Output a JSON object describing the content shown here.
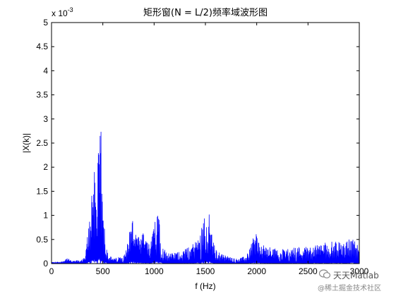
{
  "chart_data": {
    "type": "line",
    "title": "矩形窗(N = L/2)频率域波形图",
    "xlabel": "f (Hz)",
    "ylabel": "|X(k)|",
    "y_exponent_label": "x 10",
    "y_exponent_power": "-3",
    "xlim": [
      0,
      3000
    ],
    "ylim": [
      0,
      5
    ],
    "x_ticks": [
      "0",
      "500",
      "1000",
      "1500",
      "2000",
      "2500",
      "3000"
    ],
    "y_ticks": [
      "0",
      "0.5",
      "1",
      "1.5",
      "2",
      "2.5",
      "3",
      "3.5",
      "4",
      "4.5",
      "5"
    ],
    "grid": false,
    "series": [
      {
        "color": "#0000ff",
        "envelope": [
          [
            0,
            0.03
          ],
          [
            100,
            0.04
          ],
          [
            150,
            0.12
          ],
          [
            200,
            0.05
          ],
          [
            300,
            0.08
          ],
          [
            330,
            0.15
          ],
          [
            350,
            0.6
          ],
          [
            380,
            1.2
          ],
          [
            400,
            1.9
          ],
          [
            420,
            2.2
          ],
          [
            440,
            1.5
          ],
          [
            460,
            2.5
          ],
          [
            480,
            2.95
          ],
          [
            500,
            1.0
          ],
          [
            520,
            0.9
          ],
          [
            550,
            0.2
          ],
          [
            600,
            0.1
          ],
          [
            680,
            0.15
          ],
          [
            730,
            0.3
          ],
          [
            770,
            0.85
          ],
          [
            800,
            0.98
          ],
          [
            830,
            0.6
          ],
          [
            870,
            0.5
          ],
          [
            900,
            0.7
          ],
          [
            930,
            0.5
          ],
          [
            960,
            0.35
          ],
          [
            1000,
            0.8
          ],
          [
            1030,
            1.4
          ],
          [
            1050,
            1.2
          ],
          [
            1080,
            0.35
          ],
          [
            1150,
            0.2
          ],
          [
            1250,
            0.25
          ],
          [
            1350,
            0.35
          ],
          [
            1450,
            0.6
          ],
          [
            1480,
            1.1
          ],
          [
            1510,
            0.9
          ],
          [
            1540,
            1.05
          ],
          [
            1570,
            0.5
          ],
          [
            1600,
            0.3
          ],
          [
            1650,
            0.2
          ],
          [
            1800,
            0.1
          ],
          [
            1900,
            0.15
          ],
          [
            1970,
            0.6
          ],
          [
            2000,
            0.65
          ],
          [
            2030,
            0.4
          ],
          [
            2100,
            0.35
          ],
          [
            2200,
            0.3
          ],
          [
            2300,
            0.3
          ],
          [
            2400,
            0.35
          ],
          [
            2500,
            0.35
          ],
          [
            2600,
            0.4
          ],
          [
            2700,
            0.45
          ],
          [
            2800,
            0.45
          ],
          [
            2900,
            0.5
          ],
          [
            2950,
            0.55
          ],
          [
            3000,
            0.3
          ]
        ]
      }
    ]
  },
  "watermark": {
    "main": "天天Matlab",
    "sub": "@稀土掘金技术社区",
    "icon": "wechat-bubble-icon"
  }
}
